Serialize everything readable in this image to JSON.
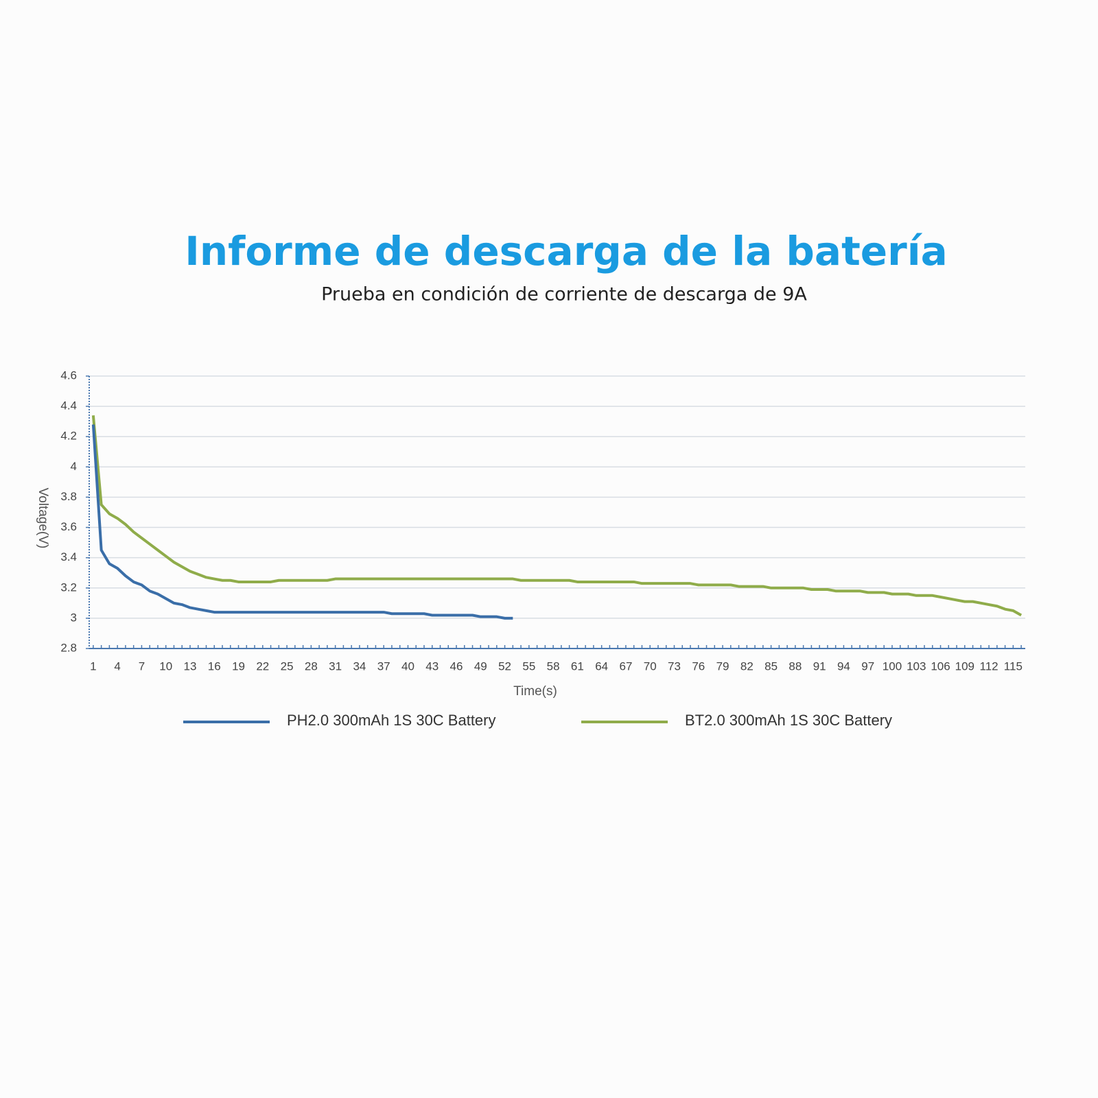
{
  "chart_data": {
    "type": "line",
    "title": "Informe de descarga de la batería",
    "subtitle": "Prueba en condición de corriente de descarga de 9A",
    "x_label": "Time(s)",
    "y_label": "Voltage(V)",
    "x": [
      1,
      2,
      3,
      4,
      5,
      6,
      7,
      8,
      9,
      10,
      11,
      12,
      13,
      14,
      15,
      16,
      17,
      18,
      19,
      20,
      21,
      22,
      23,
      24,
      25,
      26,
      27,
      28,
      29,
      30,
      31,
      32,
      33,
      34,
      35,
      36,
      37,
      38,
      39,
      40,
      41,
      42,
      43,
      44,
      45,
      46,
      47,
      48,
      49,
      50,
      51,
      52,
      53,
      54,
      55,
      56,
      57,
      58,
      59,
      60,
      61,
      62,
      63,
      64,
      65,
      66,
      67,
      68,
      69,
      70,
      71,
      72,
      73,
      74,
      75,
      76,
      77,
      78,
      79,
      80,
      81,
      82,
      83,
      84,
      85,
      86,
      87,
      88,
      89,
      90,
      91,
      92,
      93,
      94,
      95,
      96,
      97,
      98,
      99,
      100,
      101,
      102,
      103,
      104,
      105,
      106,
      107,
      108,
      109,
      110,
      111,
      112,
      113,
      114,
      115,
      116
    ],
    "xlim": [
      0.5,
      116.5
    ],
    "xticks": [
      1,
      4,
      7,
      10,
      13,
      16,
      19,
      22,
      25,
      28,
      31,
      34,
      37,
      40,
      43,
      46,
      49,
      52,
      55,
      58,
      61,
      64,
      67,
      70,
      73,
      76,
      79,
      82,
      85,
      88,
      91,
      94,
      97,
      100,
      103,
      106,
      109,
      112,
      115
    ],
    "ylim": [
      2.8,
      4.6
    ],
    "yticks": [
      2.8,
      3,
      3.2,
      3.4,
      3.6,
      3.8,
      4,
      4.2,
      4.4,
      4.6
    ],
    "grid": true,
    "legend": "bottom",
    "series": [
      {
        "name": "PH2.0 300mAh 1S 30C Battery",
        "color": "#3a6ea8",
        "values": [
          4.28,
          3.45,
          3.36,
          3.33,
          3.28,
          3.24,
          3.22,
          3.18,
          3.16,
          3.13,
          3.1,
          3.09,
          3.07,
          3.06,
          3.05,
          3.04,
          3.04,
          3.04,
          3.04,
          3.04,
          3.04,
          3.04,
          3.04,
          3.04,
          3.04,
          3.04,
          3.04,
          3.04,
          3.04,
          3.04,
          3.04,
          3.04,
          3.04,
          3.04,
          3.04,
          3.04,
          3.04,
          3.03,
          3.03,
          3.03,
          3.03,
          3.03,
          3.02,
          3.02,
          3.02,
          3.02,
          3.02,
          3.02,
          3.01,
          3.01,
          3.01,
          3.0,
          3.0,
          null,
          null,
          null,
          null,
          null,
          null,
          null,
          null,
          null,
          null,
          null,
          null,
          null,
          null,
          null,
          null,
          null,
          null,
          null,
          null,
          null,
          null,
          null,
          null,
          null,
          null,
          null,
          null,
          null,
          null,
          null,
          null,
          null,
          null,
          null,
          null,
          null,
          null,
          null,
          null,
          null,
          null,
          null,
          null,
          null,
          null,
          null,
          null,
          null,
          null,
          null,
          null,
          null,
          null,
          null,
          null,
          null,
          null,
          null,
          null,
          null,
          null,
          null
        ]
      },
      {
        "name": "BT2.0 300mAh 1S 30C Battery",
        "color": "#8fac4a",
        "values": [
          4.34,
          3.75,
          3.69,
          3.66,
          3.62,
          3.57,
          3.53,
          3.49,
          3.45,
          3.41,
          3.37,
          3.34,
          3.31,
          3.29,
          3.27,
          3.26,
          3.25,
          3.25,
          3.24,
          3.24,
          3.24,
          3.24,
          3.24,
          3.25,
          3.25,
          3.25,
          3.25,
          3.25,
          3.25,
          3.25,
          3.26,
          3.26,
          3.26,
          3.26,
          3.26,
          3.26,
          3.26,
          3.26,
          3.26,
          3.26,
          3.26,
          3.26,
          3.26,
          3.26,
          3.26,
          3.26,
          3.26,
          3.26,
          3.26,
          3.26,
          3.26,
          3.26,
          3.26,
          3.25,
          3.25,
          3.25,
          3.25,
          3.25,
          3.25,
          3.25,
          3.24,
          3.24,
          3.24,
          3.24,
          3.24,
          3.24,
          3.24,
          3.24,
          3.23,
          3.23,
          3.23,
          3.23,
          3.23,
          3.23,
          3.23,
          3.22,
          3.22,
          3.22,
          3.22,
          3.22,
          3.21,
          3.21,
          3.21,
          3.21,
          3.2,
          3.2,
          3.2,
          3.2,
          3.2,
          3.19,
          3.19,
          3.19,
          3.18,
          3.18,
          3.18,
          3.18,
          3.17,
          3.17,
          3.17,
          3.16,
          3.16,
          3.16,
          3.15,
          3.15,
          3.15,
          3.14,
          3.13,
          3.12,
          3.11,
          3.11,
          3.1,
          3.09,
          3.08,
          3.06,
          3.05,
          3.02
        ]
      }
    ]
  }
}
